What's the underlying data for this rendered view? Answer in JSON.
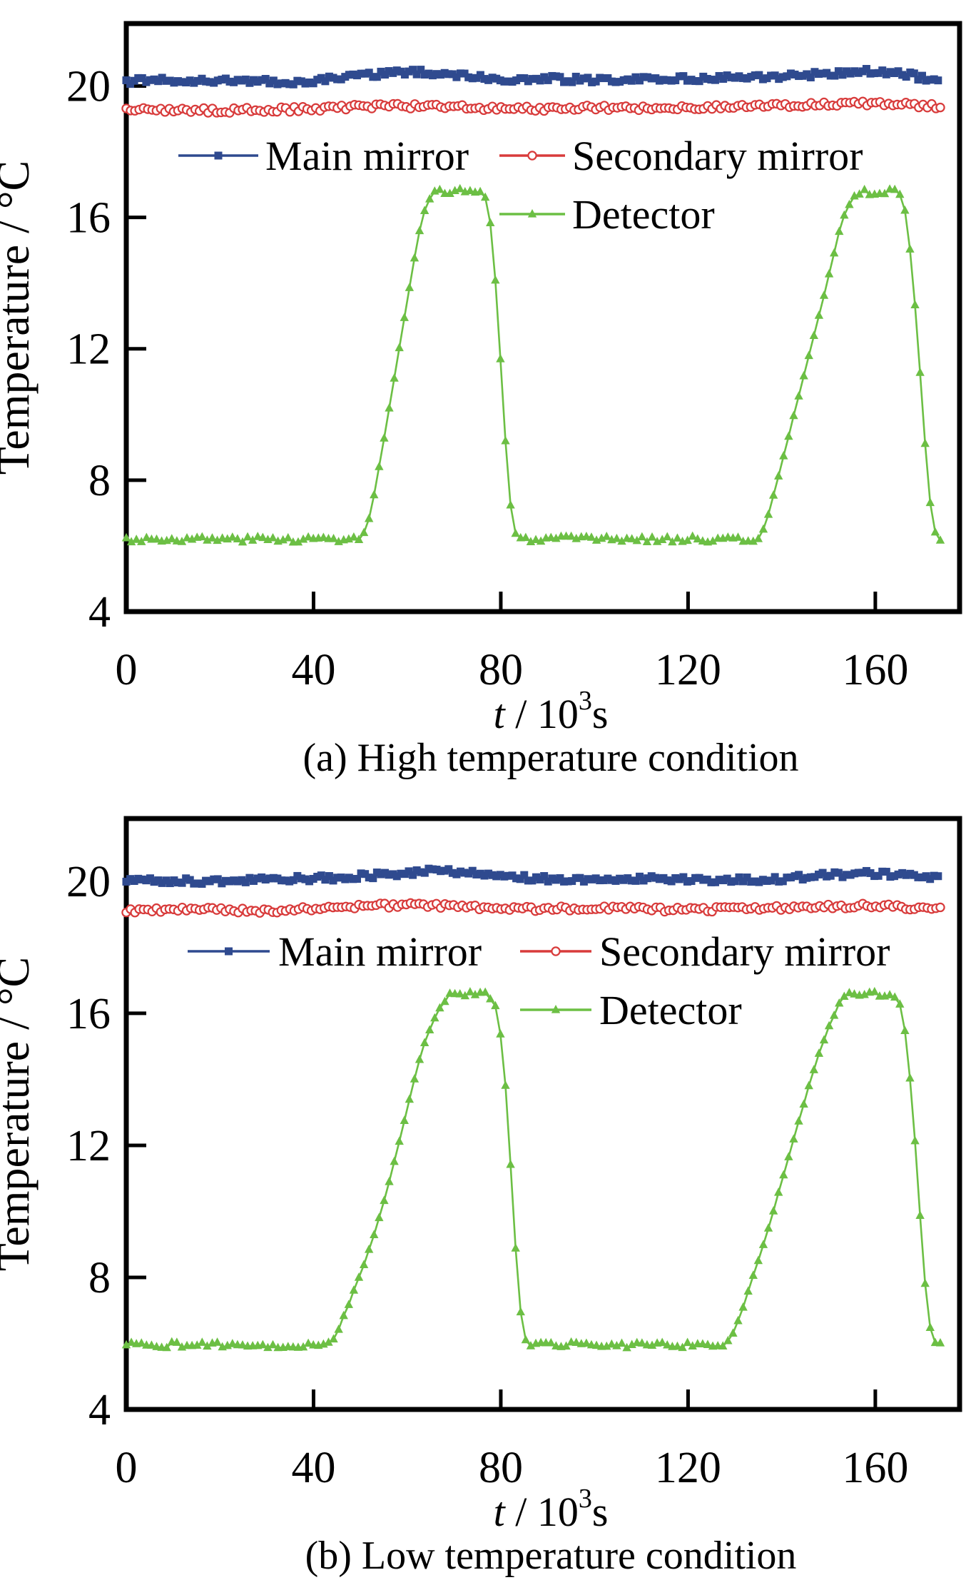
{
  "figure": {
    "background": "#ffffff",
    "text_color": "#000000",
    "axis_color": "#000000"
  },
  "chart_data": [
    {
      "type": "line",
      "panel": "a",
      "caption": "(a) High temperature condition",
      "ylabel": "Temperature / °C",
      "xlabel": {
        "pre": "t",
        "mid": " / 10",
        "sup": "3",
        "post": "s"
      },
      "xlim": [
        0,
        178
      ],
      "ylim": [
        4,
        21.9
      ],
      "xticks": [
        "0",
        "40",
        "80",
        "120",
        "160"
      ],
      "yticks": [
        "4",
        "8",
        "12",
        "16",
        "20"
      ],
      "xtick_values": [
        0,
        40,
        80,
        120,
        160
      ],
      "ytick_values": [
        4,
        8,
        12,
        16,
        20
      ],
      "grid": false,
      "legend_position": "inside-top",
      "series": [
        {
          "name": "Main mirror",
          "color": "#2f4a8f",
          "marker": "filled-square",
          "line_width": 3,
          "noise": 0.09,
          "sample_step": 0.85,
          "waypoints": [
            [
              0,
              20.15
            ],
            [
              20,
              20.18
            ],
            [
              35,
              20.1
            ],
            [
              45,
              20.22
            ],
            [
              55,
              20.38
            ],
            [
              62,
              20.42
            ],
            [
              70,
              20.35
            ],
            [
              80,
              20.2
            ],
            [
              90,
              20.22
            ],
            [
              100,
              20.18
            ],
            [
              110,
              20.2
            ],
            [
              120,
              20.22
            ],
            [
              130,
              20.26
            ],
            [
              140,
              20.3
            ],
            [
              148,
              20.36
            ],
            [
              155,
              20.42
            ],
            [
              160,
              20.46
            ],
            [
              165,
              20.4
            ],
            [
              170,
              20.25
            ],
            [
              174,
              20.15
            ]
          ]
        },
        {
          "name": "Secondary mirror",
          "color": "#d83b3b",
          "marker": "open-circle",
          "line_width": 2,
          "noise": 0.075,
          "sample_step": 0.92,
          "waypoints": [
            [
              0,
              19.28
            ],
            [
              20,
              19.25
            ],
            [
              40,
              19.3
            ],
            [
              55,
              19.4
            ],
            [
              70,
              19.36
            ],
            [
              85,
              19.3
            ],
            [
              100,
              19.34
            ],
            [
              115,
              19.32
            ],
            [
              130,
              19.36
            ],
            [
              145,
              19.42
            ],
            [
              155,
              19.48
            ],
            [
              165,
              19.45
            ],
            [
              174,
              19.38
            ]
          ]
        },
        {
          "name": "Detector",
          "color": "#6cbf44",
          "marker": "filled-triangle",
          "line_width": 2.6,
          "noise": 0.09,
          "sample_step": 1.08,
          "waypoints": [
            [
              0,
              6.2
            ],
            [
              50,
              6.2
            ],
            [
              51.5,
              6.6
            ],
            [
              53,
              7.6
            ],
            [
              55,
              9.2
            ],
            [
              57,
              10.9
            ],
            [
              59,
              12.6
            ],
            [
              61,
              14.3
            ],
            [
              62.5,
              15.5
            ],
            [
              64,
              16.35
            ],
            [
              65.5,
              16.7
            ],
            [
              67,
              16.8
            ],
            [
              75.5,
              16.8
            ],
            [
              77,
              16.55
            ],
            [
              78,
              15.6
            ],
            [
              79,
              13.8
            ],
            [
              80,
              11.5
            ],
            [
              81,
              9.2
            ],
            [
              82,
              7.3
            ],
            [
              83,
              6.4
            ],
            [
              84,
              6.2
            ],
            [
              135,
              6.2
            ],
            [
              136.5,
              6.6
            ],
            [
              138,
              7.4
            ],
            [
              140,
              8.5
            ],
            [
              143,
              10.2
            ],
            [
              146,
              11.9
            ],
            [
              149,
              13.6
            ],
            [
              151,
              14.8
            ],
            [
              152.5,
              15.7
            ],
            [
              154,
              16.3
            ],
            [
              155.5,
              16.65
            ],
            [
              157,
              16.75
            ],
            [
              164.5,
              16.8
            ],
            [
              166,
              16.5
            ],
            [
              167,
              15.6
            ],
            [
              168,
              14.2
            ],
            [
              169,
              12.4
            ],
            [
              170,
              10.4
            ],
            [
              171,
              8.4
            ],
            [
              172,
              6.9
            ],
            [
              173,
              6.3
            ],
            [
              174,
              6.2
            ]
          ]
        }
      ]
    },
    {
      "type": "line",
      "panel": "b",
      "caption": "(b) Low temperature condition",
      "ylabel": "Temperature / °C",
      "xlabel": {
        "pre": "t",
        "mid": " / 10",
        "sup": "3",
        "post": "s"
      },
      "xlim": [
        0,
        178
      ],
      "ylim": [
        4,
        21.9
      ],
      "xticks": [
        "0",
        "40",
        "80",
        "120",
        "160"
      ],
      "yticks": [
        "4",
        "8",
        "12",
        "16",
        "20"
      ],
      "xtick_values": [
        0,
        40,
        80,
        120,
        160
      ],
      "ytick_values": [
        4,
        8,
        12,
        16,
        20
      ],
      "grid": false,
      "legend_position": "inside-top",
      "series": [
        {
          "name": "Main mirror",
          "color": "#2f4a8f",
          "marker": "filled-square",
          "line_width": 3,
          "noise": 0.09,
          "sample_step": 0.85,
          "waypoints": [
            [
              0,
              20.05
            ],
            [
              15,
              20.0
            ],
            [
              30,
              20.05
            ],
            [
              45,
              20.1
            ],
            [
              55,
              20.2
            ],
            [
              63,
              20.3
            ],
            [
              72,
              20.28
            ],
            [
              82,
              20.12
            ],
            [
              95,
              20.05
            ],
            [
              110,
              20.1
            ],
            [
              125,
              20.02
            ],
            [
              138,
              20.06
            ],
            [
              148,
              20.18
            ],
            [
              158,
              20.24
            ],
            [
              166,
              20.18
            ],
            [
              174,
              20.1
            ]
          ]
        },
        {
          "name": "Secondary mirror",
          "color": "#d83b3b",
          "marker": "open-circle",
          "line_width": 2,
          "noise": 0.075,
          "sample_step": 0.92,
          "waypoints": [
            [
              0,
              19.1
            ],
            [
              15,
              19.15
            ],
            [
              30,
              19.1
            ],
            [
              45,
              19.2
            ],
            [
              58,
              19.28
            ],
            [
              70,
              19.24
            ],
            [
              85,
              19.16
            ],
            [
              100,
              19.2
            ],
            [
              115,
              19.14
            ],
            [
              130,
              19.16
            ],
            [
              145,
              19.22
            ],
            [
              158,
              19.26
            ],
            [
              168,
              19.2
            ],
            [
              174,
              19.16
            ]
          ]
        },
        {
          "name": "Detector",
          "color": "#6cbf44",
          "marker": "filled-triangle",
          "line_width": 2.6,
          "noise": 0.09,
          "sample_step": 1.08,
          "waypoints": [
            [
              0,
              5.95
            ],
            [
              43,
              5.95
            ],
            [
              45,
              6.3
            ],
            [
              47,
              7.0
            ],
            [
              50,
              8.1
            ],
            [
              53,
              9.3
            ],
            [
              56,
              10.8
            ],
            [
              59,
              12.5
            ],
            [
              61,
              13.7
            ],
            [
              63,
              14.8
            ],
            [
              65,
              15.6
            ],
            [
              67,
              16.2
            ],
            [
              68.5,
              16.5
            ],
            [
              70,
              16.6
            ],
            [
              77.5,
              16.55
            ],
            [
              79,
              16.2
            ],
            [
              80,
              15.3
            ],
            [
              81,
              13.8
            ],
            [
              82,
              11.6
            ],
            [
              83,
              9.2
            ],
            [
              84,
              7.2
            ],
            [
              85,
              6.2
            ],
            [
              86,
              5.95
            ],
            [
              128,
              5.95
            ],
            [
              130,
              6.4
            ],
            [
              132,
              7.2
            ],
            [
              135,
              8.5
            ],
            [
              138,
              9.9
            ],
            [
              141,
              11.4
            ],
            [
              144,
              12.9
            ],
            [
              146,
              13.9
            ],
            [
              148,
              14.8
            ],
            [
              150,
              15.6
            ],
            [
              152,
              16.2
            ],
            [
              153.5,
              16.5
            ],
            [
              155,
              16.6
            ],
            [
              164,
              16.55
            ],
            [
              165.5,
              16.2
            ],
            [
              166.5,
              15.3
            ],
            [
              167.5,
              13.9
            ],
            [
              168.5,
              12.1
            ],
            [
              169.5,
              10.0
            ],
            [
              170.5,
              8.0
            ],
            [
              171.5,
              6.6
            ],
            [
              172.5,
              6.0
            ],
            [
              174,
              5.95
            ]
          ]
        }
      ]
    }
  ]
}
